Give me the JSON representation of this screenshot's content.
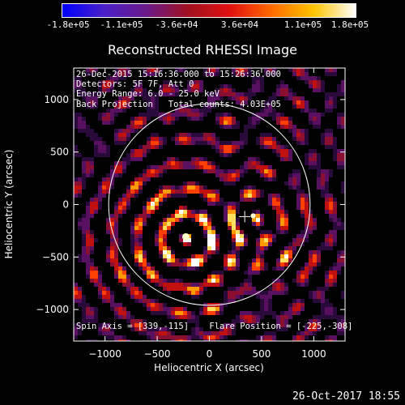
{
  "colorbar": {
    "ticks": [
      "-1.8e+05",
      "-1.1e+05",
      "-3.6e+04",
      "3.6e+04",
      "1.1e+05",
      "1.8e+05"
    ],
    "colors": [
      "#0000ff",
      "#4a20c8",
      "#6b1a8a",
      "#a01020",
      "#e01010",
      "#ff6a00",
      "#ffc400",
      "#ffffff"
    ]
  },
  "chart_data": {
    "type": "heatmap",
    "title": "Reconstructed RHESSI Image",
    "xlabel": "Heliocentric X (arcsec)",
    "ylabel": "Heliocentric Y (arcsec)",
    "xlim": [
      -1300,
      1300
    ],
    "ylim": [
      -1300,
      1300
    ],
    "xticks": [
      -1000,
      -500,
      0,
      500,
      1000
    ],
    "yticks": [
      -1000,
      -500,
      0,
      500,
      1000
    ],
    "xtick_labels": [
      "−1000",
      "−500",
      "0",
      "500",
      "1000"
    ],
    "ytick_labels": [
      "−1000",
      "−500",
      "0",
      "500",
      "1000"
    ],
    "solar_radius": 965,
    "flare_position": [
      -225,
      -308
    ],
    "spin_axis": [
      339,
      -115
    ],
    "sources": [
      {
        "x": -225,
        "y": -308,
        "strength": 1.0
      },
      {
        "x": 420,
        "y": -108,
        "strength": 0.55
      }
    ]
  },
  "info": {
    "line1": "26-Dec-2015 15:16:36.000 to 15:26:36.000",
    "line2": "Detectors: 5F 7F, Att 0",
    "line3": "Energy Range: 6.0 - 25.0 keV",
    "line4": "Back Projection   Total counts: 4.03E+05",
    "spin": "Spin Axis = [339,-115]",
    "flare": "Flare Position = [-225,-308]"
  },
  "footer": "26-Oct-2017 18:55"
}
